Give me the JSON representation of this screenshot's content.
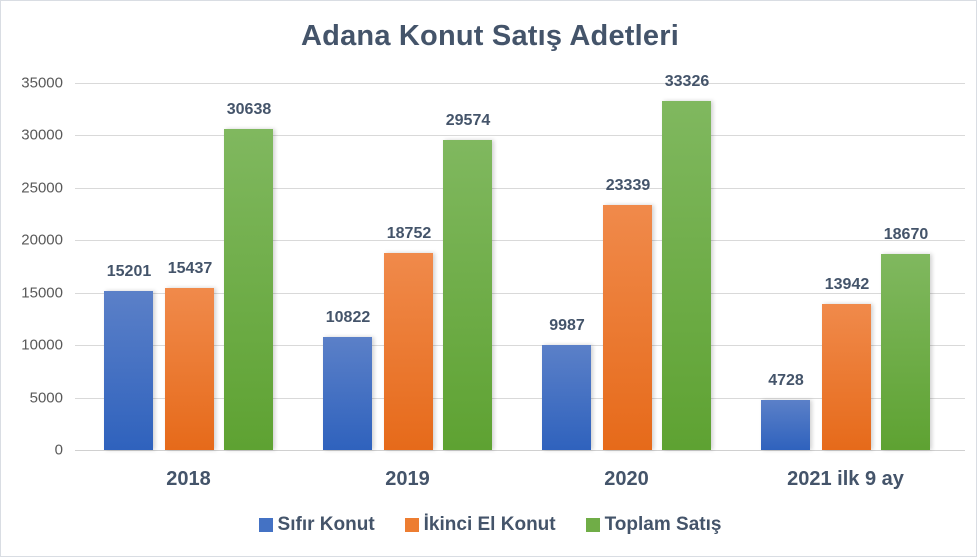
{
  "chart_data": {
    "type": "bar",
    "title": "Adana Konut Satış Adetleri",
    "xlabel": "",
    "ylabel": "",
    "ylim": [
      0,
      35000
    ],
    "yticks": [
      0,
      5000,
      10000,
      15000,
      20000,
      25000,
      30000,
      35000
    ],
    "ytick_labels": [
      "0",
      "5000",
      "10000",
      "15000",
      "20000",
      "25000",
      "30000",
      "35000"
    ],
    "grid": true,
    "legend_position": "bottom",
    "categories": [
      "2018",
      "2019",
      "2020",
      "2021 ilk 9 ay"
    ],
    "series": [
      {
        "name": "Sıfır Konut",
        "color": "#4472c4",
        "values": [
          15201,
          10822,
          9987,
          4728
        ]
      },
      {
        "name": "İkinci El Konut",
        "color": "#ed7d31",
        "values": [
          15437,
          18752,
          23339,
          13942
        ]
      },
      {
        "name": "Toplam Satış",
        "color": "#70ad47",
        "values": [
          30638,
          29574,
          33326,
          18670
        ]
      }
    ],
    "data_labels": true
  }
}
